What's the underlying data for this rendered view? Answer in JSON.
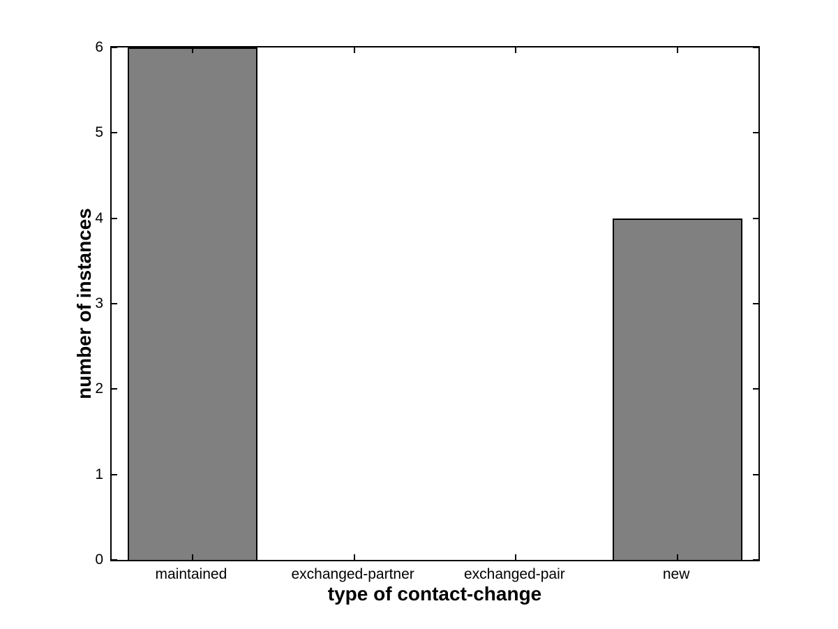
{
  "figure": {
    "background": "#ffffff",
    "axis_color": "#000000"
  },
  "chart_data": {
    "type": "bar",
    "categories": [
      "maintained",
      "exchanged-partner",
      "exchanged-pair",
      "new"
    ],
    "values": [
      6,
      0,
      0,
      4
    ],
    "title": "",
    "xlabel": "type of contact-change",
    "ylabel": "number of instances",
    "ylim": [
      0,
      6
    ],
    "yticks": [
      0,
      1,
      2,
      3,
      4,
      5,
      6
    ],
    "bar_width_fraction": 0.8,
    "bar_color": "#808080",
    "bar_edge_color": "#000000",
    "grid": false,
    "legend": null,
    "tick_direction": "in",
    "box": true
  }
}
